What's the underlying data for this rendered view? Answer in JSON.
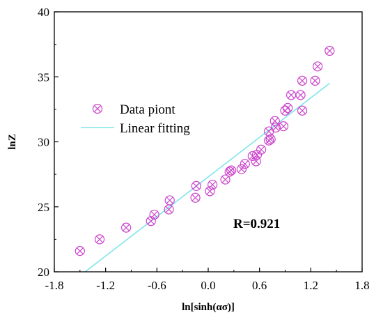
{
  "chart_data": {
    "type": "scatter",
    "title": "",
    "xlabel": "ln[sinh(ασ)]",
    "ylabel": "lnZ",
    "xlim": [
      -1.8,
      1.8
    ],
    "ylim": [
      20,
      40
    ],
    "xticks": [
      -1.8,
      -1.2,
      -0.6,
      0.0,
      0.6,
      1.2,
      1.8
    ],
    "xtick_labels": [
      "-1.8",
      "-1.2",
      "-0.6",
      "0.0",
      "0.6",
      "1.2",
      "1.8"
    ],
    "yticks": [
      20,
      25,
      30,
      35,
      40
    ],
    "ytick_labels": [
      "20",
      "25",
      "30",
      "35",
      "40"
    ],
    "grid": false,
    "legend_position": "upper-left",
    "series": [
      {
        "name": "Data piont",
        "kind": "scatter",
        "marker": "circle-x",
        "color": "#cc44cc",
        "x": [
          -1.5,
          -1.27,
          -0.96,
          -0.67,
          -0.63,
          -0.46,
          -0.45,
          -0.15,
          -0.14,
          0.02,
          0.05,
          0.2,
          0.25,
          0.27,
          0.39,
          0.43,
          0.52,
          0.56,
          0.57,
          0.62,
          0.71,
          0.71,
          0.73,
          0.78,
          0.79,
          0.88,
          0.9,
          0.93,
          0.97,
          1.08,
          1.1,
          1.1,
          1.25,
          1.28,
          1.42
        ],
        "y": [
          21.6,
          22.5,
          23.4,
          23.9,
          24.4,
          24.8,
          25.5,
          25.7,
          26.6,
          26.2,
          26.7,
          27.1,
          27.7,
          27.8,
          27.9,
          28.3,
          28.9,
          28.5,
          29.0,
          29.4,
          30.1,
          30.8,
          30.2,
          31.6,
          31.1,
          31.2,
          32.4,
          32.6,
          33.6,
          33.6,
          32.4,
          34.7,
          34.7,
          35.8,
          37.0
        ]
      },
      {
        "name": "Linear fitting",
        "kind": "line",
        "color": "#7fe5ea",
        "x": [
          -1.44,
          1.42
        ],
        "y": [
          20.0,
          34.5
        ]
      }
    ],
    "annotations": [
      {
        "text": "R=0.921"
      }
    ]
  }
}
